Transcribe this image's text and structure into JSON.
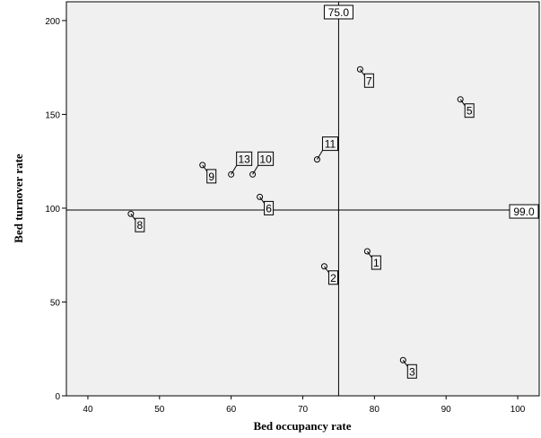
{
  "chart_data": {
    "type": "scatter",
    "xlabel": "Bed occupancy rate",
    "ylabel": "Bed turnover rate",
    "xlim": [
      37,
      103
    ],
    "ylim": [
      0,
      210
    ],
    "xticks": [
      40,
      50,
      60,
      70,
      80,
      90,
      100
    ],
    "yticks": [
      0,
      50,
      100,
      150,
      200
    ],
    "reference_lines": [
      {
        "axis": "x",
        "value": 75.0,
        "label": "75.0"
      },
      {
        "axis": "y",
        "value": 99.0,
        "label": "99.0"
      }
    ],
    "points": [
      {
        "label": "1",
        "x": 79,
        "y": 77
      },
      {
        "label": "2",
        "x": 73,
        "y": 69
      },
      {
        "label": "3",
        "x": 84,
        "y": 19
      },
      {
        "label": "5",
        "x": 92,
        "y": 158
      },
      {
        "label": "6",
        "x": 64,
        "y": 106
      },
      {
        "label": "7",
        "x": 78,
        "y": 174
      },
      {
        "label": "8",
        "x": 46,
        "y": 97
      },
      {
        "label": "9",
        "x": 56,
        "y": 123
      },
      {
        "label": "10",
        "x": 63,
        "y": 118
      },
      {
        "label": "11",
        "x": 72,
        "y": 126
      },
      {
        "label": "13",
        "x": 60,
        "y": 118
      }
    ],
    "grid": false
  }
}
